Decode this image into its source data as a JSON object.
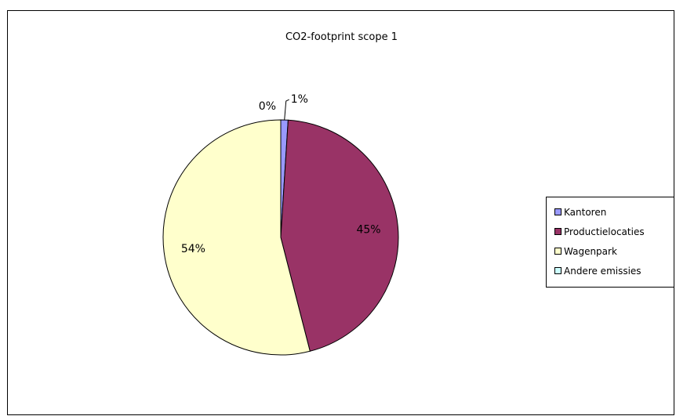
{
  "chart_data": {
    "type": "pie",
    "title": "CO2-footprint  scope 1",
    "categories": [
      "Kantoren",
      "Productielocaties",
      "Wagenpark",
      "Andere emissies"
    ],
    "values": [
      1,
      45,
      54,
      0
    ],
    "labels": [
      "1%",
      "45%",
      "54%",
      "0%"
    ],
    "colors": [
      "#9999ff",
      "#993366",
      "#ffffcc",
      "#ccffff"
    ],
    "legend_position": "right"
  }
}
